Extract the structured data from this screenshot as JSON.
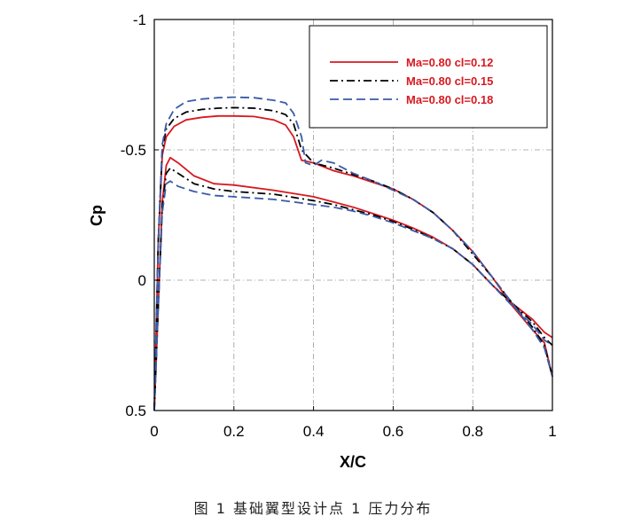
{
  "chart_data": {
    "type": "line",
    "title": "",
    "xlabel": "X/C",
    "ylabel": "Cp",
    "xlim": [
      0,
      1
    ],
    "ylim": [
      0.5,
      -1
    ],
    "y_inverted": true,
    "grid": true,
    "legend_position": "top-right",
    "x_ticks": [
      "0",
      "0.2",
      "0.4",
      "0.6",
      "0.8",
      "1"
    ],
    "y_ticks": [
      "-1",
      "-0.5",
      "0",
      "0.5"
    ],
    "series": [
      {
        "name": "Ma=0.80 cl=0.12",
        "color": "#d71920",
        "dash": "solid",
        "upper": {
          "x": [
            0,
            0.01,
            0.02,
            0.03,
            0.05,
            0.08,
            0.12,
            0.16,
            0.2,
            0.25,
            0.3,
            0.33,
            0.35,
            0.37,
            0.4,
            0.45,
            0.5,
            0.55,
            0.6,
            0.65,
            0.7,
            0.75,
            0.8,
            0.85,
            0.9,
            0.95,
            0.98,
            1.0
          ],
          "y": [
            0.5,
            -0.15,
            -0.48,
            -0.55,
            -0.59,
            -0.615,
            -0.625,
            -0.63,
            -0.63,
            -0.628,
            -0.615,
            -0.595,
            -0.55,
            -0.46,
            -0.45,
            -0.42,
            -0.4,
            -0.375,
            -0.35,
            -0.31,
            -0.26,
            -0.19,
            -0.11,
            -0.01,
            0.1,
            0.19,
            0.24,
            0.37
          ]
        },
        "lower": {
          "x": [
            0,
            0.01,
            0.02,
            0.03,
            0.04,
            0.06,
            0.1,
            0.15,
            0.2,
            0.3,
            0.4,
            0.45,
            0.5,
            0.55,
            0.6,
            0.65,
            0.7,
            0.75,
            0.8,
            0.85,
            0.9,
            0.95,
            0.98,
            1.0
          ],
          "y": [
            0.5,
            0.1,
            -0.3,
            -0.44,
            -0.47,
            -0.45,
            -0.4,
            -0.37,
            -0.365,
            -0.345,
            -0.32,
            -0.3,
            -0.28,
            -0.255,
            -0.23,
            -0.2,
            -0.165,
            -0.12,
            -0.06,
            0.02,
            0.09,
            0.15,
            0.2,
            0.22
          ]
        }
      },
      {
        "name": "Ma=0.80 cl=0.15",
        "color": "#000000",
        "dash": "dash-dot",
        "upper": {
          "x": [
            0,
            0.01,
            0.02,
            0.03,
            0.05,
            0.08,
            0.12,
            0.16,
            0.2,
            0.25,
            0.3,
            0.33,
            0.35,
            0.37,
            0.4,
            0.45,
            0.5,
            0.55,
            0.6,
            0.65,
            0.7,
            0.75,
            0.8,
            0.85,
            0.9,
            0.95,
            0.98,
            1.0
          ],
          "y": [
            0.5,
            -0.15,
            -0.5,
            -0.58,
            -0.62,
            -0.645,
            -0.655,
            -0.66,
            -0.662,
            -0.66,
            -0.65,
            -0.635,
            -0.6,
            -0.5,
            -0.45,
            -0.43,
            -0.405,
            -0.38,
            -0.35,
            -0.31,
            -0.26,
            -0.19,
            -0.1,
            -0.01,
            0.09,
            0.18,
            0.25,
            0.37
          ]
        },
        "lower": {
          "x": [
            0,
            0.01,
            0.02,
            0.03,
            0.04,
            0.06,
            0.1,
            0.15,
            0.2,
            0.3,
            0.4,
            0.45,
            0.5,
            0.55,
            0.6,
            0.65,
            0.7,
            0.75,
            0.8,
            0.85,
            0.9,
            0.95,
            0.98,
            1.0
          ],
          "y": [
            0.5,
            0.1,
            -0.28,
            -0.41,
            -0.43,
            -0.41,
            -0.37,
            -0.35,
            -0.34,
            -0.33,
            -0.305,
            -0.29,
            -0.27,
            -0.25,
            -0.225,
            -0.195,
            -0.16,
            -0.12,
            -0.06,
            0.02,
            0.09,
            0.16,
            0.22,
            0.25
          ]
        }
      },
      {
        "name": "Ma=0.80 cl=0.18",
        "color": "#3a5ba8",
        "dash": "dashed",
        "upper": {
          "x": [
            0,
            0.01,
            0.02,
            0.03,
            0.05,
            0.08,
            0.12,
            0.16,
            0.2,
            0.25,
            0.3,
            0.33,
            0.35,
            0.37,
            0.38,
            0.4,
            0.42,
            0.45,
            0.5,
            0.55,
            0.6,
            0.65,
            0.7,
            0.75,
            0.8,
            0.85,
            0.9,
            0.95,
            0.98,
            1.0
          ],
          "y": [
            0.5,
            -0.15,
            -0.52,
            -0.6,
            -0.655,
            -0.685,
            -0.695,
            -0.7,
            -0.702,
            -0.7,
            -0.69,
            -0.68,
            -0.64,
            -0.55,
            -0.45,
            -0.44,
            -0.46,
            -0.45,
            -0.41,
            -0.38,
            -0.345,
            -0.31,
            -0.26,
            -0.19,
            -0.11,
            -0.01,
            0.09,
            0.19,
            0.26,
            0.37
          ]
        },
        "lower": {
          "x": [
            0,
            0.01,
            0.02,
            0.03,
            0.04,
            0.06,
            0.1,
            0.15,
            0.2,
            0.3,
            0.4,
            0.45,
            0.5,
            0.55,
            0.6,
            0.65,
            0.7,
            0.75,
            0.8,
            0.85,
            0.9,
            0.95,
            0.98,
            1.0
          ],
          "y": [
            0.5,
            0.1,
            -0.26,
            -0.37,
            -0.38,
            -0.36,
            -0.34,
            -0.325,
            -0.32,
            -0.31,
            -0.29,
            -0.28,
            -0.265,
            -0.245,
            -0.22,
            -0.19,
            -0.16,
            -0.12,
            -0.06,
            0.02,
            0.1,
            0.17,
            0.23,
            0.25
          ]
        }
      }
    ]
  },
  "caption": "图 1  基础翼型设计点 1 压力分布"
}
